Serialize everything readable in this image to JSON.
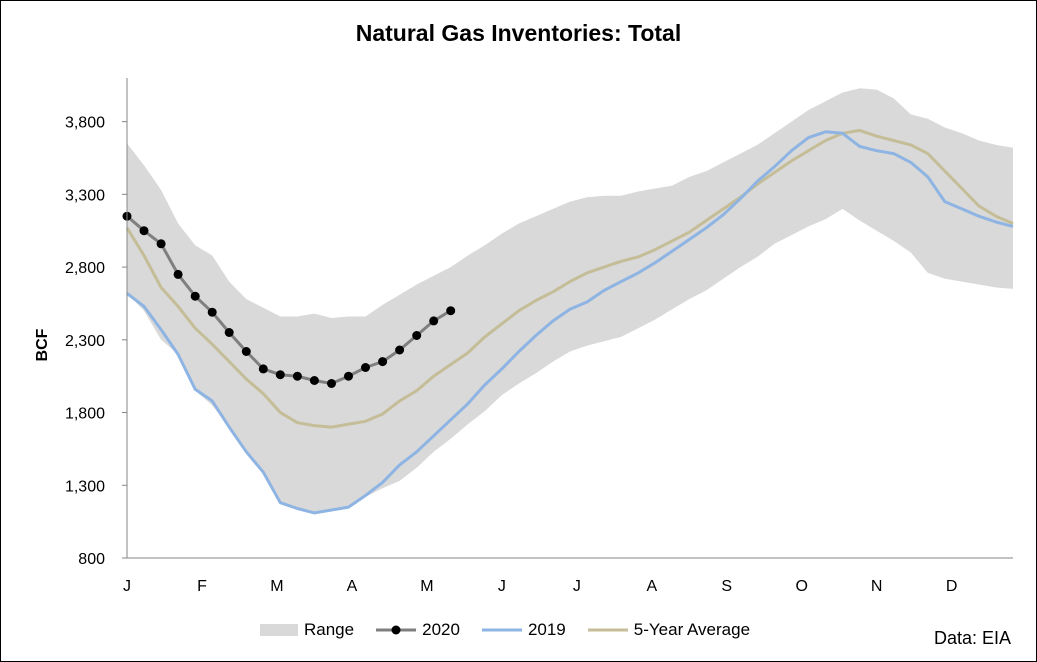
{
  "chart_data": {
    "type": "line",
    "title": "Natural Gas Inventories: Total",
    "ylabel": "BCF",
    "xlabel": "",
    "ylim": [
      800,
      4100
    ],
    "yticks": [
      800,
      1300,
      1800,
      2300,
      2800,
      3300,
      3800
    ],
    "ytick_labels": [
      "800",
      "1,300",
      "1,800",
      "2,300",
      "2,800",
      "3,300",
      "3,800"
    ],
    "xlim": [
      0,
      52
    ],
    "month_ticks": [
      0,
      4.4,
      8.8,
      13.2,
      17.6,
      22,
      26.4,
      30.8,
      35.2,
      39.6,
      44,
      48.4
    ],
    "month_labels": [
      "J",
      "F",
      "M",
      "A",
      "M",
      "J",
      "J",
      "A",
      "S",
      "O",
      "N",
      "D"
    ],
    "source": "Data: EIA",
    "legend": {
      "position": "bottom",
      "items": [
        "Range",
        "2020",
        "2019",
        "5-Year Average"
      ]
    },
    "colors": {
      "range": "#d9d9d9",
      "s2020": "#7f7f7f",
      "s2020_marker": "#000000",
      "s2019": "#8eb4e3",
      "avg": "#c4bd97"
    },
    "range": {
      "x": [
        0,
        1,
        2,
        3,
        4,
        5,
        6,
        7,
        8,
        9,
        10,
        11,
        12,
        13,
        14,
        15,
        16,
        17,
        18,
        19,
        20,
        21,
        22,
        23,
        24,
        25,
        26,
        27,
        28,
        29,
        30,
        31,
        32,
        33,
        34,
        35,
        36,
        37,
        38,
        39,
        40,
        41,
        42,
        43,
        44,
        45,
        46,
        47,
        48,
        49,
        50,
        51,
        52
      ],
      "upper": [
        3650,
        3500,
        3330,
        3100,
        2950,
        2880,
        2700,
        2580,
        2520,
        2460,
        2460,
        2480,
        2450,
        2460,
        2460,
        2540,
        2610,
        2680,
        2740,
        2800,
        2880,
        2950,
        3030,
        3100,
        3150,
        3200,
        3250,
        3280,
        3290,
        3290,
        3320,
        3340,
        3360,
        3420,
        3460,
        3520,
        3580,
        3640,
        3720,
        3800,
        3880,
        3940,
        4000,
        4030,
        4020,
        3960,
        3850,
        3820,
        3760,
        3720,
        3670,
        3640,
        3620
      ],
      "lower": [
        2620,
        2500,
        2300,
        2200,
        1950,
        1850,
        1700,
        1520,
        1390,
        1180,
        1140,
        1110,
        1140,
        1160,
        1220,
        1280,
        1330,
        1420,
        1530,
        1620,
        1720,
        1810,
        1920,
        2000,
        2070,
        2150,
        2220,
        2260,
        2290,
        2320,
        2380,
        2440,
        2510,
        2580,
        2640,
        2720,
        2800,
        2870,
        2960,
        3020,
        3080,
        3130,
        3200,
        3120,
        3050,
        2980,
        2900,
        2760,
        2720,
        2700,
        2680,
        2660,
        2650
      ]
    },
    "series": [
      {
        "name": "2020",
        "x": [
          0,
          1,
          2,
          3,
          4,
          5,
          6,
          7,
          8,
          9,
          10,
          11,
          12,
          13,
          14,
          15,
          16,
          17,
          18,
          19
        ],
        "values": [
          3150,
          3050,
          2960,
          2750,
          2600,
          2490,
          2350,
          2220,
          2100,
          2060,
          2050,
          2020,
          2000,
          2050,
          2110,
          2150,
          2230,
          2330,
          2430,
          2500
        ]
      },
      {
        "name": "2019",
        "x": [
          0,
          1,
          2,
          3,
          4,
          5,
          6,
          7,
          8,
          9,
          10,
          11,
          12,
          13,
          14,
          15,
          16,
          17,
          18,
          19,
          20,
          21,
          22,
          23,
          24,
          25,
          26,
          27,
          28,
          29,
          30,
          31,
          32,
          33,
          34,
          35,
          36,
          37,
          38,
          39,
          40,
          41,
          42,
          43,
          44,
          45,
          46,
          47,
          48,
          49,
          50,
          51,
          52
        ],
        "values": [
          2620,
          2530,
          2370,
          2200,
          1960,
          1880,
          1700,
          1530,
          1390,
          1180,
          1140,
          1110,
          1130,
          1150,
          1230,
          1320,
          1440,
          1530,
          1640,
          1750,
          1860,
          1990,
          2100,
          2220,
          2330,
          2430,
          2510,
          2560,
          2640,
          2700,
          2760,
          2830,
          2910,
          2990,
          3070,
          3160,
          3270,
          3390,
          3490,
          3600,
          3690,
          3730,
          3720,
          3630,
          3600,
          3580,
          3520,
          3420,
          3250,
          3200,
          3150,
          3110,
          3080
        ]
      },
      {
        "name": "5-Year Average",
        "x": [
          0,
          1,
          2,
          3,
          4,
          5,
          6,
          7,
          8,
          9,
          10,
          11,
          12,
          13,
          14,
          15,
          16,
          17,
          18,
          19,
          20,
          21,
          22,
          23,
          24,
          25,
          26,
          27,
          28,
          29,
          30,
          31,
          32,
          33,
          34,
          35,
          36,
          37,
          38,
          39,
          40,
          41,
          42,
          43,
          44,
          45,
          46,
          47,
          48,
          49,
          50,
          51,
          52
        ],
        "values": [
          3070,
          2880,
          2660,
          2530,
          2380,
          2270,
          2150,
          2030,
          1930,
          1800,
          1730,
          1710,
          1700,
          1720,
          1740,
          1790,
          1880,
          1950,
          2050,
          2130,
          2210,
          2320,
          2410,
          2500,
          2570,
          2630,
          2700,
          2760,
          2800,
          2840,
          2870,
          2920,
          2980,
          3040,
          3120,
          3200,
          3280,
          3370,
          3450,
          3530,
          3600,
          3670,
          3720,
          3740,
          3700,
          3670,
          3640,
          3580,
          3460,
          3340,
          3220,
          3150,
          3100
        ]
      }
    ]
  }
}
